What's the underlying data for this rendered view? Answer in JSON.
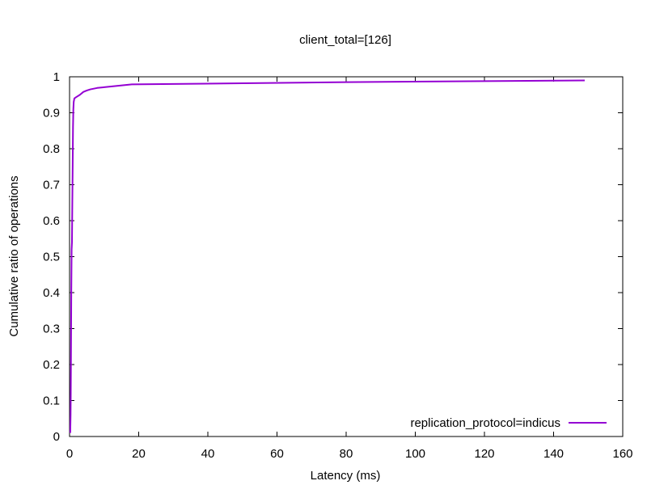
{
  "chart_data": {
    "type": "line",
    "title": "client_total=[126]",
    "xlabel": "Latency (ms)",
    "ylabel": "Cumulative ratio of operations",
    "xlim": [
      0,
      160
    ],
    "ylim": [
      0,
      1
    ],
    "xticks": [
      0,
      20,
      40,
      60,
      80,
      100,
      120,
      140,
      160
    ],
    "yticks": [
      0,
      0.1,
      0.2,
      0.3,
      0.4,
      0.5,
      0.6,
      0.7,
      0.8,
      0.9,
      1
    ],
    "ytick_labels": [
      "0",
      "0.1",
      "0.2",
      "0.3",
      "0.4",
      "0.5",
      "0.6",
      "0.7",
      "0.8",
      "0.9",
      "1"
    ],
    "grid": false,
    "legend_position": "bottom-right",
    "series": [
      {
        "name": "replication_protocol=indicus",
        "color": "#9400d3",
        "x": [
          0.2,
          0.3,
          0.35,
          0.4,
          0.5,
          0.6,
          0.7,
          0.8,
          0.9,
          1.0,
          1.1,
          1.2,
          1.4,
          1.7,
          2.0,
          3.0,
          4.0,
          5.0,
          6.0,
          8.0,
          10.0,
          14.0,
          18.0,
          30.0,
          50.0,
          80.0,
          120.0,
          149.0
        ],
        "y": [
          0.01,
          0.06,
          0.12,
          0.2,
          0.4,
          0.52,
          0.54,
          0.65,
          0.75,
          0.86,
          0.91,
          0.93,
          0.94,
          0.942,
          0.944,
          0.95,
          0.958,
          0.962,
          0.965,
          0.969,
          0.971,
          0.975,
          0.979,
          0.98,
          0.982,
          0.985,
          0.988,
          0.99
        ]
      }
    ]
  }
}
